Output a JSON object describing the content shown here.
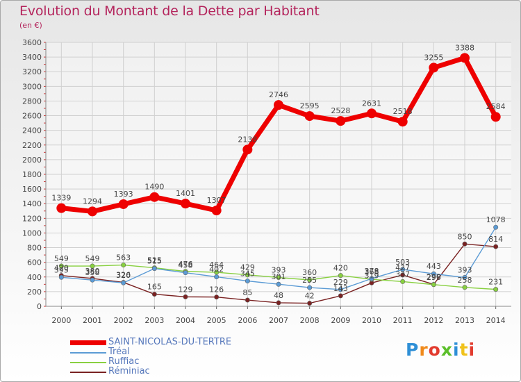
{
  "chart_data": {
    "type": "line",
    "title": "Evolution du Montant de la Dette par Habitant",
    "subtitle": "(en €)",
    "x": [
      2000,
      2001,
      2002,
      2003,
      2004,
      2005,
      2006,
      2007,
      2008,
      2009,
      2010,
      2011,
      2012,
      2013,
      2014
    ],
    "ylim": [
      0,
      3600
    ],
    "yticks": [
      0,
      200,
      400,
      600,
      800,
      1000,
      1200,
      1400,
      1600,
      1800,
      2000,
      2200,
      2400,
      2600,
      2800,
      3000,
      3200,
      3400,
      3600
    ],
    "grid": true,
    "legend_position": "bottom-left",
    "series": [
      {
        "name": "SAINT-NICOLAS-DU-TERTRE",
        "color": "#ee0000",
        "values": [
          1339,
          1294,
          1393,
          1490,
          1401,
          1307,
          2138,
          2746,
          2595,
          2528,
          2631,
          2518,
          3255,
          3388,
          2584
        ]
      },
      {
        "name": "Tréal",
        "color": "#5b9bd5",
        "values": [
          395,
          358,
          320,
          515,
          458,
          402,
          345,
          301,
          255,
          229,
          378,
          503,
          443,
          393,
          1078
        ]
      },
      {
        "name": "Ruffiac",
        "color": "#88d040",
        "values": [
          549,
          549,
          563,
          525,
          476,
          464,
          429,
          393,
          360,
          420,
          368,
          337,
          296,
          258,
          231
        ]
      },
      {
        "name": "Réminiac",
        "color": "#7a2222",
        "values": [
          420,
          380,
          326,
          165,
          129,
          126,
          85,
          48,
          42,
          143,
          319,
          427,
          299,
          850,
          814
        ]
      }
    ]
  },
  "logo": {
    "letters": [
      "P",
      "r",
      "o",
      "x",
      "i",
      "t",
      "i"
    ]
  }
}
